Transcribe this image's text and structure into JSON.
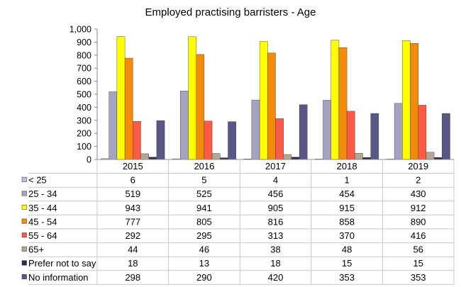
{
  "chart_data": {
    "type": "bar",
    "title": "Employed practising barristers - Age",
    "categories": [
      "2015",
      "2016",
      "2017",
      "2018",
      "2019"
    ],
    "yticks": [
      "0",
      "100",
      "200",
      "300",
      "400",
      "500",
      "600",
      "700",
      "800",
      "900",
      "1,000"
    ],
    "ylim": [
      0,
      1000
    ],
    "grid": false,
    "legend": "data-table",
    "series": [
      {
        "name": "< 25",
        "color": "#C0BFDF",
        "values": [
          6,
          5,
          4,
          1,
          2
        ]
      },
      {
        "name": "25 - 34",
        "color": "#A5A3C4",
        "values": [
          519,
          525,
          456,
          454,
          430
        ]
      },
      {
        "name": "35 - 44",
        "color": "#FFFF00",
        "values": [
          943,
          941,
          905,
          915,
          912
        ]
      },
      {
        "name": "45 - 54",
        "color": "#F28C0A",
        "values": [
          777,
          805,
          816,
          858,
          890
        ]
      },
      {
        "name": "55 - 64",
        "color": "#FF5A46",
        "values": [
          292,
          295,
          313,
          370,
          416
        ]
      },
      {
        "name": "65+",
        "color": "#B5A892",
        "values": [
          44,
          46,
          38,
          48,
          56
        ]
      },
      {
        "name": "Prefer not to say",
        "color": "#2B2B4E",
        "values": [
          18,
          13,
          18,
          15,
          15
        ]
      },
      {
        "name": "No information",
        "color": "#5A5786",
        "values": [
          298,
          290,
          420,
          353,
          353
        ]
      }
    ]
  }
}
